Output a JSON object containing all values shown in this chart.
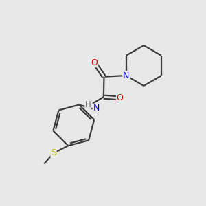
{
  "background_color": "#e8e8e8",
  "bond_color": "#3a3a3a",
  "line_width": 1.6,
  "atom_colors": {
    "O": "#e00000",
    "N": "#0000cc",
    "S": "#b8b800",
    "H": "#606060",
    "C": "#3a3a3a"
  },
  "figsize": [
    3.0,
    3.0
  ],
  "dpi": 100
}
